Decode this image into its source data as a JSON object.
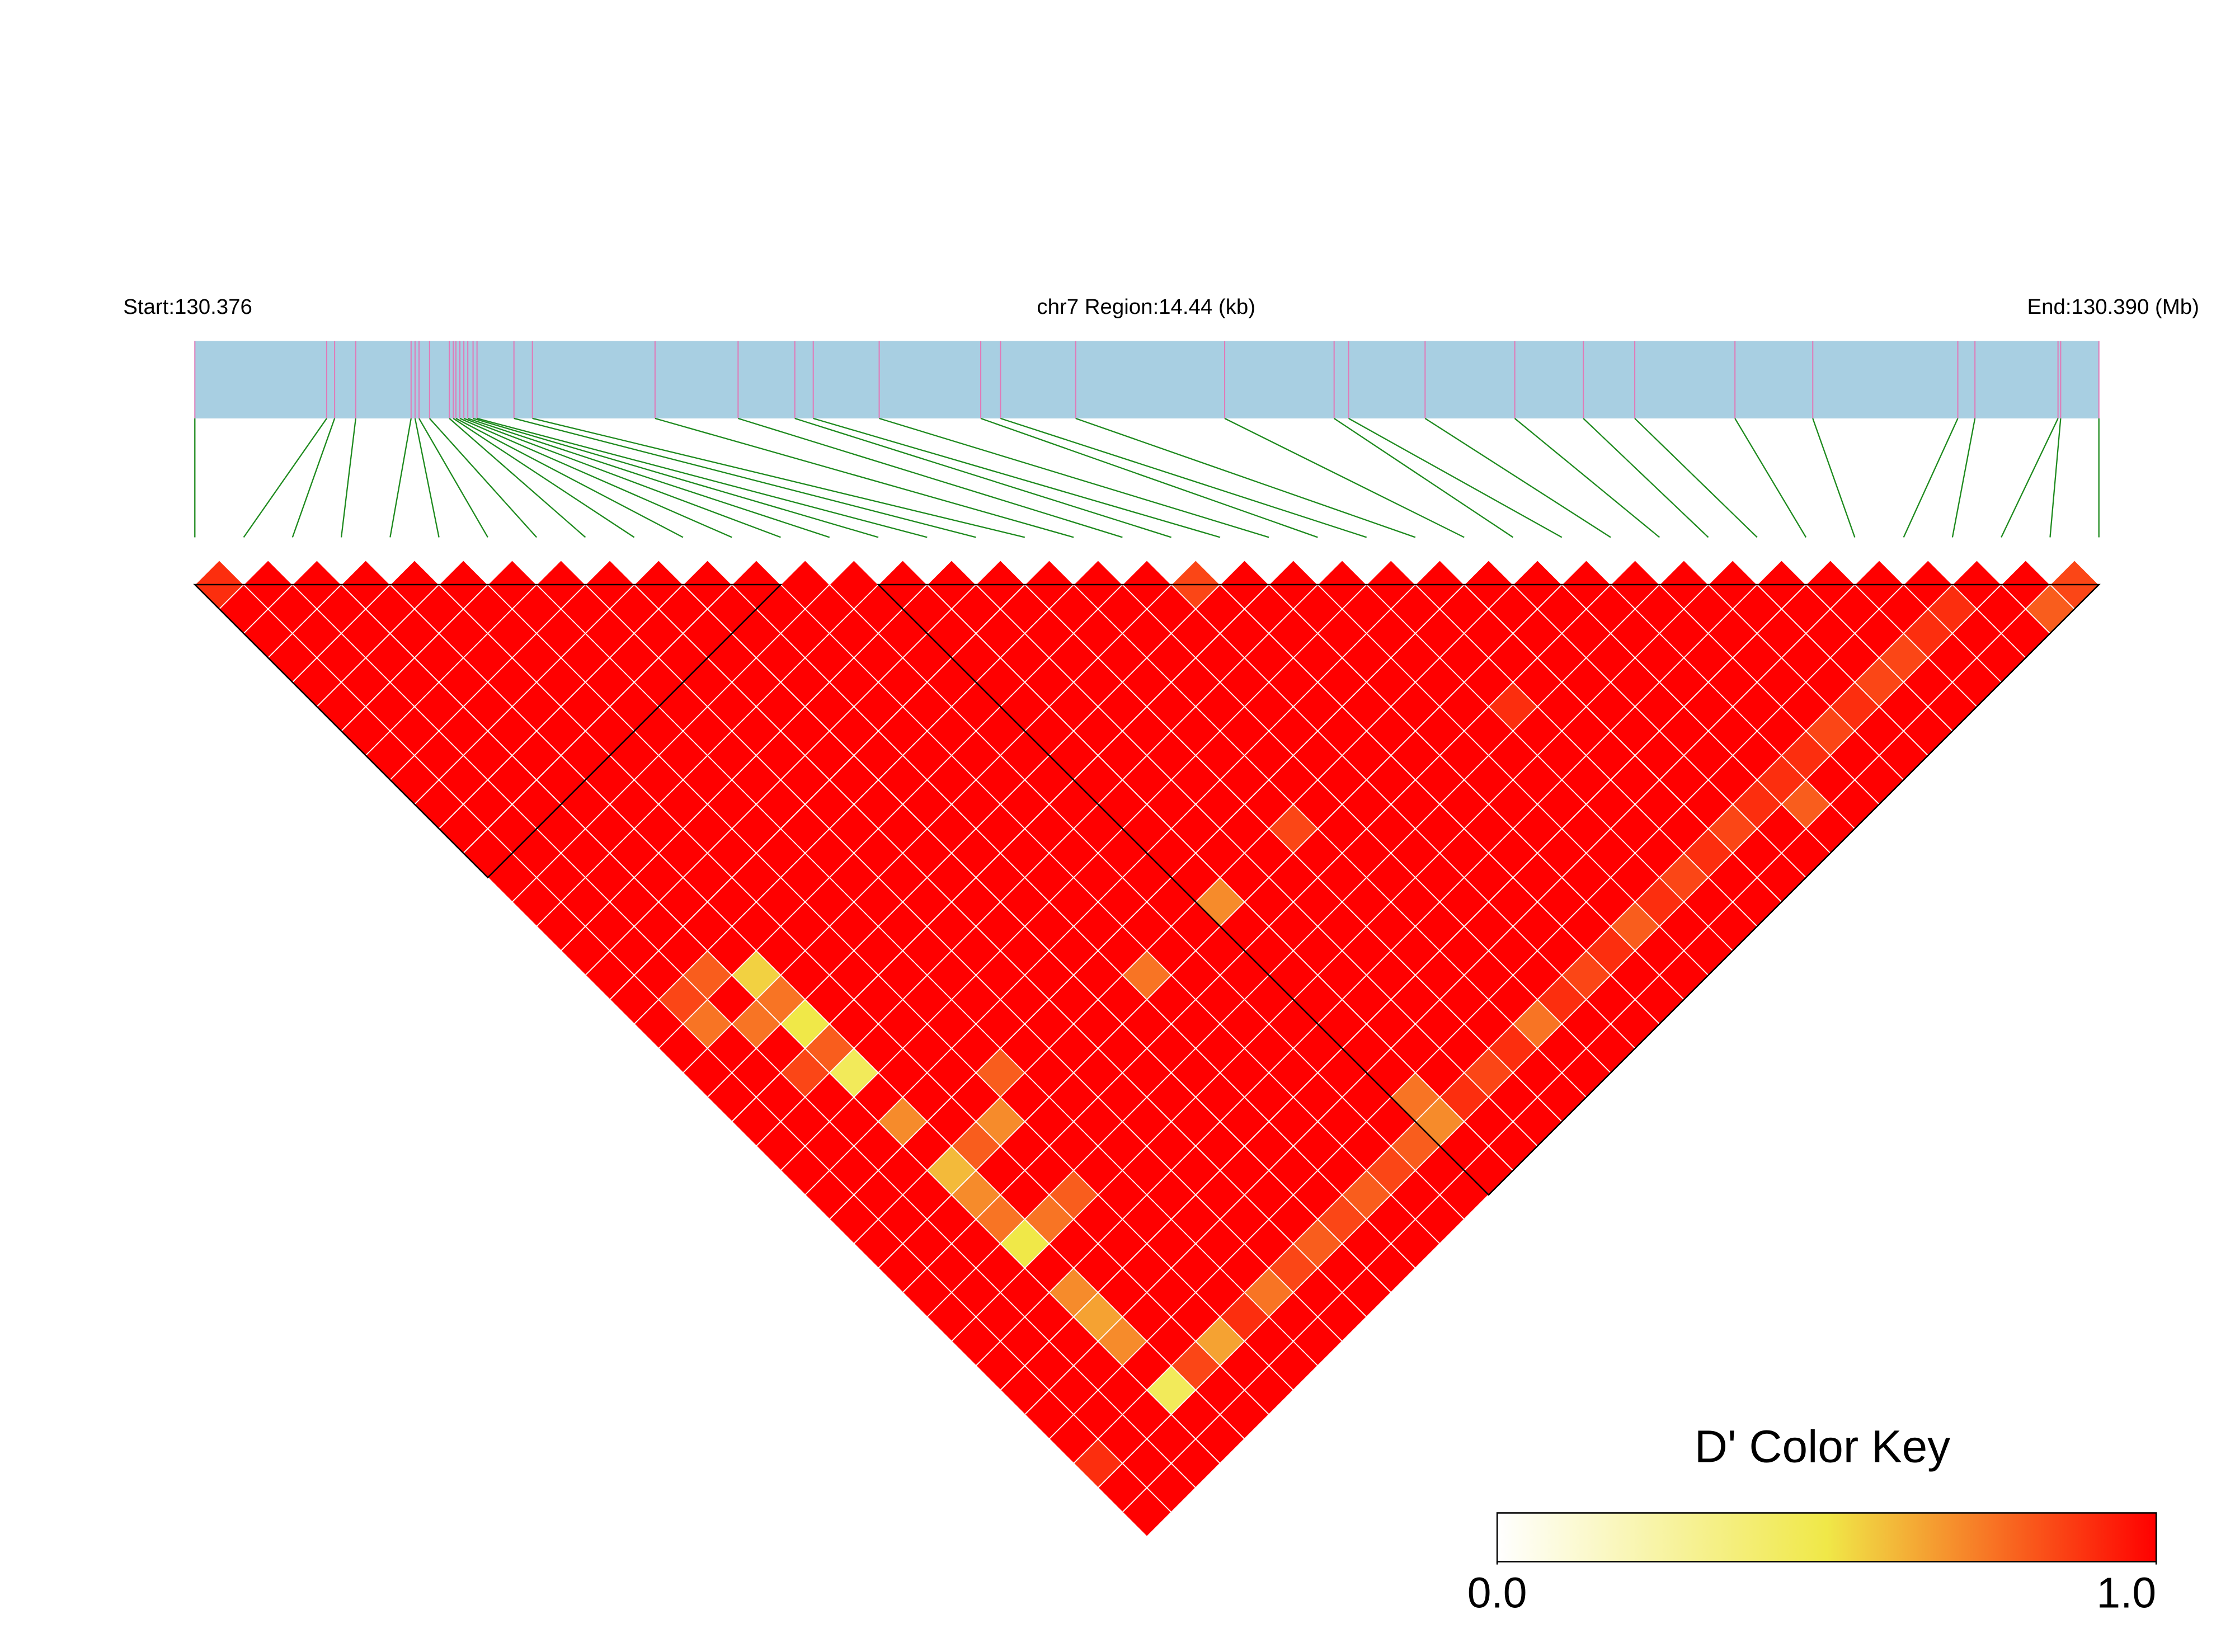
{
  "chart_data": {
    "type": "ld_heatmap",
    "start_label": "Start:130.376",
    "region_label": "chr7 Region:14.44 (kb)",
    "end_label": "End:130.390 (Mb)",
    "xlim_kb": [
      0,
      14.44
    ],
    "snp_positions_kb": [
      0,
      1.0,
      1.06,
      1.22,
      1.64,
      1.67,
      1.7,
      1.78,
      1.93,
      1.96,
      1.98,
      2.01,
      2.04,
      2.07,
      2.11,
      2.14,
      2.42,
      2.56,
      3.49,
      4.12,
      4.55,
      4.69,
      5.19,
      5.96,
      6.11,
      6.68,
      7.81,
      8.64,
      8.75,
      9.33,
      10.01,
      10.53,
      10.92,
      11.68,
      12.27,
      13.37,
      13.5,
      14.13,
      14.15,
      14.44
    ],
    "bar_color": "#a8cfe2",
    "snp_line_color": "#e07ab8",
    "connector_color": "#1e8a1e",
    "ld_matrix": [
      [
        0.9,
        1,
        1,
        1,
        1,
        1,
        1,
        1,
        1,
        1,
        1,
        1,
        1,
        1,
        1,
        1,
        1,
        1,
        1,
        1,
        1,
        1,
        1,
        1,
        1,
        1,
        1,
        1,
        1,
        1,
        1,
        1,
        1,
        1,
        1,
        1,
        0.9,
        1,
        1
      ],
      [
        1,
        1,
        1,
        1,
        1,
        1,
        1,
        1,
        1,
        1,
        1,
        1,
        1,
        1,
        1,
        1,
        1,
        0.85,
        0.75,
        1,
        1,
        1,
        1,
        1,
        1,
        1,
        1,
        1,
        1,
        1,
        1,
        1,
        1,
        1,
        1,
        1,
        1,
        1
      ],
      [
        1,
        1,
        1,
        1,
        1,
        1,
        1,
        1,
        1,
        1,
        1,
        1,
        1,
        1,
        1,
        1,
        0.8,
        1,
        0.75,
        1,
        0.85,
        1,
        1,
        1,
        1,
        1,
        1,
        1,
        1,
        1,
        1,
        1,
        1,
        1,
        1,
        1,
        1
      ],
      [
        1,
        1,
        1,
        1,
        1,
        1,
        1,
        1,
        1,
        1,
        1,
        1,
        1,
        1,
        1,
        1,
        0.55,
        0.75,
        0.5,
        0.8,
        0.45,
        1,
        0.7,
        1,
        0.6,
        0.7,
        0.75,
        0.5,
        1,
        0.7,
        0.65,
        0.7,
        1,
        0.45,
        1,
        1
      ],
      [
        1,
        1,
        1,
        1,
        1,
        1,
        1,
        1,
        1,
        1,
        1,
        1,
        1,
        1,
        1,
        1,
        1,
        1,
        1,
        1,
        1,
        1,
        1,
        0.8,
        1,
        1,
        0.75,
        1,
        1,
        1,
        1,
        1,
        0.85,
        1,
        1
      ],
      [
        1,
        1,
        1,
        1,
        1,
        1,
        1,
        1,
        1,
        1,
        1,
        1,
        1,
        1,
        1,
        1,
        1,
        1,
        1,
        1,
        1,
        1,
        0.7,
        1,
        1,
        0.8,
        1,
        1,
        1,
        1,
        1,
        0.65,
        1,
        1
      ],
      [
        1,
        1,
        1,
        1,
        1,
        1,
        1,
        1,
        1,
        1,
        1,
        1,
        1,
        1,
        1,
        1,
        1,
        1,
        1,
        1,
        0.8,
        1,
        1,
        1,
        1,
        1,
        1,
        1,
        1,
        1,
        0.9,
        1,
        1
      ],
      [
        1,
        1,
        1,
        1,
        1,
        1,
        1,
        1,
        1,
        1,
        1,
        1,
        1,
        1,
        1,
        1,
        1,
        1,
        1,
        1,
        1,
        1,
        1,
        1,
        1,
        1,
        1,
        1,
        1,
        0.75,
        1,
        1
      ],
      [
        1,
        1,
        1,
        1,
        1,
        1,
        1,
        1,
        1,
        1,
        1,
        1,
        1,
        1,
        1,
        1,
        1,
        1,
        1,
        1,
        1,
        1,
        1,
        1,
        1,
        1,
        1,
        1,
        0.85,
        1,
        1
      ],
      [
        1,
        1,
        1,
        1,
        1,
        1,
        1,
        1,
        1,
        1,
        1,
        1,
        1,
        1,
        1,
        1,
        1,
        1,
        1,
        1,
        1,
        1,
        1,
        1,
        1,
        1,
        1,
        0.8,
        1,
        1
      ],
      [
        1,
        1,
        1,
        1,
        1,
        1,
        1,
        1,
        1,
        1,
        1,
        1,
        1,
        1,
        1,
        1,
        1,
        1,
        1,
        1,
        1,
        1,
        1,
        1,
        1,
        1,
        0.85,
        1,
        1
      ],
      [
        1,
        1,
        1,
        1,
        1,
        1,
        1,
        1,
        1,
        1,
        1,
        1,
        1,
        1,
        1,
        1,
        0.75,
        1,
        1,
        1,
        1,
        1,
        1,
        1,
        1,
        0.8,
        1,
        1
      ],
      [
        1,
        1,
        1,
        1,
        1,
        1,
        1,
        1,
        1,
        1,
        1,
        1,
        1,
        1,
        1,
        1,
        1,
        1,
        1,
        1,
        1,
        1,
        1,
        1,
        0.85,
        1,
        1
      ],
      [
        1,
        1,
        1,
        1,
        1,
        1,
        1,
        1,
        1,
        1,
        1,
        1,
        1,
        1,
        1,
        1,
        1,
        1,
        1,
        1,
        1,
        1,
        1,
        0.8,
        1,
        1
      ],
      [
        1,
        1,
        1,
        1,
        1,
        1,
        1,
        1,
        1,
        1,
        1,
        1,
        1,
        0.7,
        1,
        1,
        1,
        1,
        1,
        1,
        1,
        0.75,
        0.7,
        1,
        1
      ],
      [
        1,
        1,
        1,
        1,
        1,
        1,
        1,
        1,
        1,
        1,
        1,
        1,
        1,
        1,
        1,
        1,
        1,
        1,
        1,
        1,
        1,
        0.9,
        1,
        1
      ],
      [
        1,
        1,
        1,
        1,
        1,
        1,
        1,
        1,
        1,
        1,
        1,
        1,
        1,
        1,
        1,
        1,
        1,
        1,
        1,
        1,
        0.85,
        1,
        1
      ],
      [
        1,
        1,
        1,
        1,
        1,
        1,
        1,
        1,
        1,
        1,
        0.85,
        1,
        1,
        1,
        1,
        1,
        1,
        1,
        1,
        0.9,
        1,
        1
      ],
      [
        1,
        1,
        1,
        1,
        1,
        1,
        1,
        1,
        1,
        1,
        1,
        1,
        1,
        1,
        1,
        1,
        1,
        1,
        0.75,
        1,
        1
      ],
      [
        1,
        1,
        1,
        1,
        1,
        1,
        1,
        1,
        1,
        1,
        1,
        1,
        1,
        1,
        1,
        1,
        1,
        0.9,
        1,
        1
      ],
      [
        0.85,
        1,
        1,
        1,
        1,
        1,
        1,
        1,
        1,
        1,
        1,
        1,
        1,
        1,
        1,
        1,
        0.85,
        1,
        1
      ],
      [
        1,
        1,
        1,
        1,
        1,
        1,
        1,
        1,
        1,
        1,
        1,
        1,
        1,
        1,
        1,
        0.9,
        1,
        1
      ],
      [
        1,
        1,
        1,
        1,
        1,
        1,
        1,
        1,
        1,
        1,
        1,
        1,
        1,
        1,
        0.8,
        1,
        1
      ],
      [
        1,
        1,
        1,
        1,
        1,
        1,
        1,
        1,
        1,
        1,
        1,
        1,
        1,
        0.9,
        1,
        1
      ],
      [
        1,
        1,
        1,
        1,
        1,
        0.9,
        1,
        1,
        1,
        1,
        1,
        1,
        0.85,
        1,
        1
      ],
      [
        1,
        1,
        1,
        1,
        1,
        1,
        1,
        1,
        1,
        1,
        1,
        0.9,
        1,
        1
      ],
      [
        1,
        1,
        1,
        1,
        1,
        1,
        1,
        1,
        1,
        1,
        0.85,
        1,
        1
      ],
      [
        1,
        1,
        1,
        1,
        1,
        1,
        1,
        1,
        1,
        0.9,
        1,
        1
      ],
      [
        1,
        1,
        1,
        1,
        1,
        1,
        1,
        1,
        0.9,
        0.8,
        1
      ],
      [
        1,
        1,
        1,
        1,
        1,
        1,
        1,
        0.9,
        1,
        1
      ],
      [
        1,
        1,
        1,
        1,
        1,
        1,
        0.85,
        1,
        1
      ],
      [
        1,
        1,
        1,
        1,
        1,
        0.9,
        1,
        1
      ],
      [
        1,
        1,
        1,
        1,
        0.85,
        1,
        1
      ],
      [
        1,
        1,
        1,
        0.85,
        1,
        1
      ],
      [
        1,
        1,
        0.9,
        1,
        1
      ],
      [
        1,
        0.9,
        1,
        1
      ],
      [
        1,
        1,
        1
      ],
      [
        1,
        0.8
      ],
      [
        0.85
      ]
    ],
    "blocks": [
      [
        0,
        12
      ],
      [
        14,
        39
      ]
    ],
    "colorscale": [
      {
        "value": 0,
        "color": "#ffffff"
      },
      {
        "value": 0.5,
        "color": "#f0e848"
      },
      {
        "value": 1,
        "color": "#ff0000"
      }
    ],
    "color_key_title": "D' Color Key",
    "color_key_ticks": [
      {
        "value": 0,
        "label": "0.0"
      },
      {
        "value": 1,
        "label": "1.0"
      }
    ]
  }
}
